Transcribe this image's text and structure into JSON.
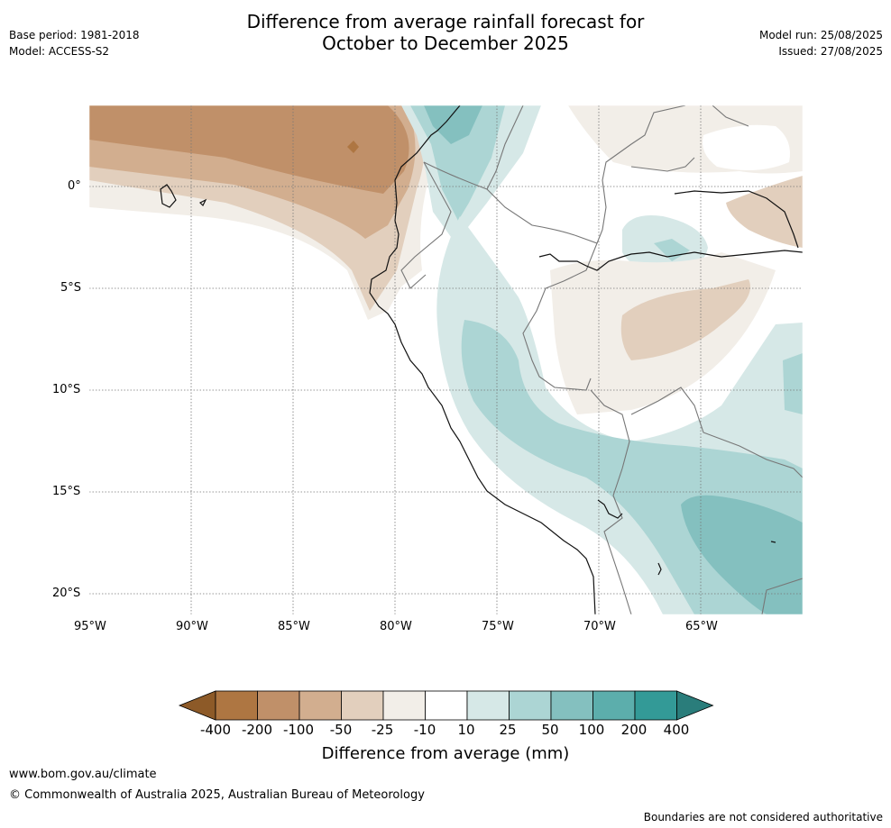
{
  "header": {
    "title_line1": "Difference from average rainfall forecast for",
    "title_line2": "October to December 2025",
    "base_period": "Base period: 1981-2018",
    "model": "Model: ACCESS-S2",
    "model_run": "Model run: 25/08/2025",
    "issued": "Issued: 27/08/2025"
  },
  "map": {
    "lat_labels": [
      "0°",
      "5°S",
      "10°S",
      "15°S",
      "20°S"
    ],
    "lon_labels": [
      "95°W",
      "90°W",
      "85°W",
      "80°W",
      "75°W",
      "70°W",
      "65°W"
    ],
    "lat_values": [
      0,
      -5,
      -10,
      -15,
      -20
    ],
    "lon_values": [
      -95,
      -90,
      -85,
      -80,
      -75,
      -70,
      -65
    ],
    "extent": {
      "lon_min": -95,
      "lon_max": -60,
      "lat_min": -21,
      "lat_max": 4
    }
  },
  "colorbar": {
    "title": "Difference from average (mm)",
    "labels": [
      "-400",
      "-200",
      "-100",
      "-50",
      "-25",
      "-10",
      "10",
      "25",
      "50",
      "100",
      "200",
      "400"
    ],
    "colors": [
      "#8d5a28",
      "#ae7642",
      "#c09069",
      "#d2ae8f",
      "#e2cfbd",
      "#f2eee8",
      "#ffffff",
      "#d6e8e7",
      "#acd5d4",
      "#84c0bf",
      "#5caeac",
      "#339a97",
      "#2a7d7b"
    ]
  },
  "footer": {
    "website": "www.bom.gov.au/climate",
    "copyright": "© Commonwealth of Australia 2025, Australian Bureau of Meteorology",
    "disclaimer": "Boundaries are not considered authoritative"
  }
}
